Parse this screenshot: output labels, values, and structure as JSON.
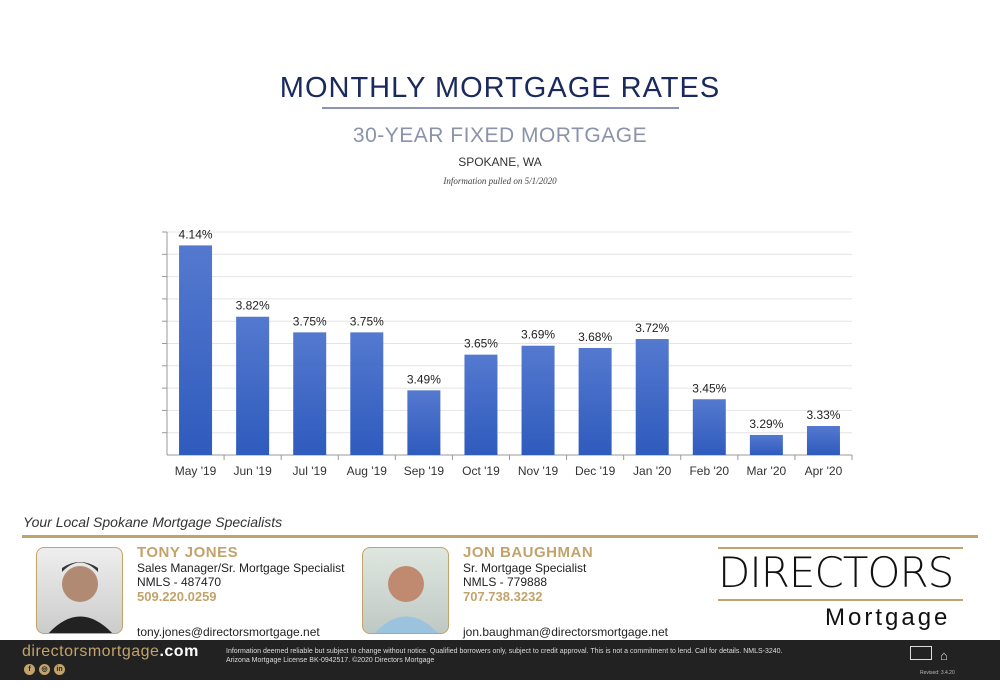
{
  "header": {
    "title": "MONTHLY MORTGAGE RATES",
    "subtitle": "30-YEAR FIXED MORTGAGE",
    "location": "SPOKANE, WA",
    "pulled": "Information pulled on 5/1/2020"
  },
  "chart_data": {
    "type": "bar",
    "categories": [
      "May '19",
      "Jun '19",
      "Jul '19",
      "Aug '19",
      "Sep '19",
      "Oct '19",
      "Nov '19",
      "Dec '19",
      "Jan '20",
      "Feb '20",
      "Mar '20",
      "Apr '20"
    ],
    "values": [
      4.14,
      3.82,
      3.75,
      3.75,
      3.49,
      3.65,
      3.69,
      3.68,
      3.72,
      3.45,
      3.29,
      3.33
    ],
    "data_labels": [
      "4.14%",
      "3.82%",
      "3.75%",
      "3.75%",
      "3.49%",
      "3.65%",
      "3.69%",
      "3.68%",
      "3.72%",
      "3.45%",
      "3.29%",
      "3.33%"
    ],
    "ylim": [
      3.2,
      4.2
    ],
    "grid": true,
    "ytick_step": 0.1,
    "ytick_labels_shown": false,
    "bar_color": "#3b67c4"
  },
  "agents": [
    {
      "name": "TONY JONES",
      "title": "Sales Manager/Sr. Mortgage Specialist",
      "nmls": "NMLS - 487470",
      "phone": "509.220.0259",
      "email": "tony.jones@directorsmortgage.net"
    },
    {
      "name": "JON BAUGHMAN",
      "title": "Sr. Mortgage Specialist",
      "nmls": "NMLS - 779888",
      "phone": "707.738.3232",
      "email": "jon.baughman@directorsmortgage.net"
    }
  ],
  "tagline": "Your Local Spokane Mortgage Specialists",
  "logo": {
    "text": "DIRECTORS",
    "sub": "Mortgage"
  },
  "footer": {
    "site_main": "directorsmortgage",
    "site_tld": ".com",
    "disclaimer1": "Information deemed reliable but subject to change without notice. Qualified borrowers only, subject to credit approval. This is not a commitment to lend. Call for details. NMLS-3240.",
    "disclaimer2": "Arizona Mortgage License BK-0942517. ©2020 Directors Mortgage",
    "revised": "Revised: 3.4.20",
    "social_icons": [
      "facebook-icon",
      "instagram-icon",
      "linkedin-icon"
    ],
    "gold": "#c2a36b"
  }
}
